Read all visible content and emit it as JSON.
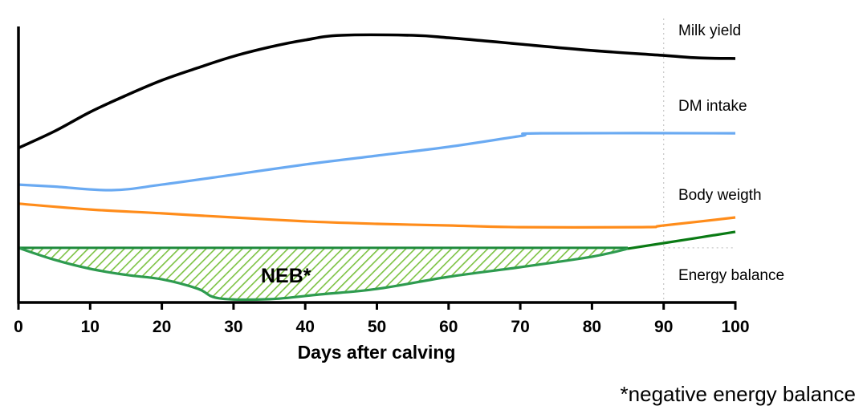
{
  "chart_data": {
    "type": "line",
    "title": "",
    "xlabel": "Days after calving",
    "ylabel": "",
    "xlim": [
      0,
      100
    ],
    "ylim": [
      0,
      100
    ],
    "y_units": "relative (no y-axis scale shown)",
    "xticks": [
      0,
      10,
      20,
      30,
      40,
      50,
      60,
      70,
      80,
      90,
      100
    ],
    "grid": false,
    "reference_line": {
      "x": 90,
      "style": "dotted",
      "color": "#c8c8c8"
    },
    "series": [
      {
        "name": "Milk yield",
        "color": "#000000",
        "points": [
          [
            0,
            56
          ],
          [
            5,
            62
          ],
          [
            10,
            69
          ],
          [
            15,
            75
          ],
          [
            20,
            80.5
          ],
          [
            25,
            85
          ],
          [
            30,
            89.2
          ],
          [
            35,
            92.5
          ],
          [
            40,
            95.1
          ],
          [
            45,
            96.8
          ],
          [
            55,
            96.8
          ],
          [
            60,
            95.9
          ],
          [
            65,
            94.8
          ],
          [
            70,
            93.6
          ],
          [
            80,
            91.3
          ],
          [
            90,
            89.5
          ],
          [
            95,
            88.6
          ],
          [
            100,
            88.4
          ]
        ]
      },
      {
        "name": "DM intake",
        "color": "#6aaaf2",
        "points": [
          [
            0,
            42.7
          ],
          [
            5,
            42
          ],
          [
            13,
            40.7
          ],
          [
            20,
            42.7
          ],
          [
            30,
            46.3
          ],
          [
            40,
            50
          ],
          [
            50,
            53.2
          ],
          [
            60,
            56.4
          ],
          [
            70,
            60.3
          ],
          [
            73,
            61.3
          ],
          [
            100,
            61.3
          ]
        ]
      },
      {
        "name": "Body weigth",
        "color": "#ff8c1a",
        "points": [
          [
            0,
            35.8
          ],
          [
            10,
            33.7
          ],
          [
            20,
            32.3
          ],
          [
            30,
            30.8
          ],
          [
            40,
            29.4
          ],
          [
            50,
            28.5
          ],
          [
            60,
            27.9
          ],
          [
            70,
            27.3
          ],
          [
            87,
            27.3
          ],
          [
            90,
            27.9
          ],
          [
            100,
            30.8
          ]
        ]
      },
      {
        "name": "Energy balance",
        "color": "#1e8a3c",
        "points": [
          [
            0,
            19.8
          ],
          [
            5,
            15.5
          ],
          [
            10,
            12.2
          ],
          [
            15,
            10
          ],
          [
            20,
            8.4
          ],
          [
            25,
            5
          ],
          [
            28,
            1.5
          ],
          [
            35,
            1.2
          ],
          [
            42,
            2.9
          ],
          [
            50,
            4.9
          ],
          [
            60,
            9.3
          ],
          [
            70,
            12.8
          ],
          [
            80,
            16.6
          ],
          [
            85,
            19.5
          ],
          [
            90,
            21.5
          ],
          [
            100,
            25.6
          ]
        ]
      }
    ],
    "baseline": {
      "name": "Energy balance zero line",
      "y": 19.8,
      "x_range": [
        0,
        85
      ],
      "dotted_extension_x": [
        90,
        100
      ],
      "color": "#1e8a3c"
    },
    "shaded_region": {
      "label": "NEB*",
      "meaning": "negative energy balance",
      "x_range": [
        0,
        85
      ],
      "fill": "hatched",
      "hatch_color": "#7cc242"
    },
    "annotations": [
      {
        "text": "NEB*",
        "x": 40,
        "y": 10
      }
    ],
    "legend": "inline-right"
  },
  "labels": {
    "milk_yield": "Milk yield",
    "dm_intake": "DM intake",
    "body_weight": "Body weigth",
    "energy_balance": "Energy balance",
    "neb": "NEB*",
    "x_axis_title": "Days after calving",
    "footnote": "*negative energy balance"
  }
}
